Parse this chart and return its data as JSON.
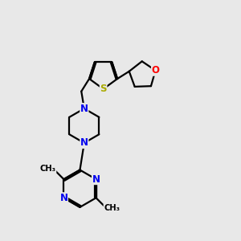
{
  "background_color": "#e8e8e8",
  "bond_color": "#000000",
  "N_color": "#0000ee",
  "S_color": "#aaaa00",
  "O_color": "#ff0000",
  "line_width": 1.6,
  "figsize": [
    3.0,
    3.0
  ],
  "dpi": 100,
  "xlim": [
    0,
    10
  ],
  "ylim": [
    0,
    10
  ]
}
